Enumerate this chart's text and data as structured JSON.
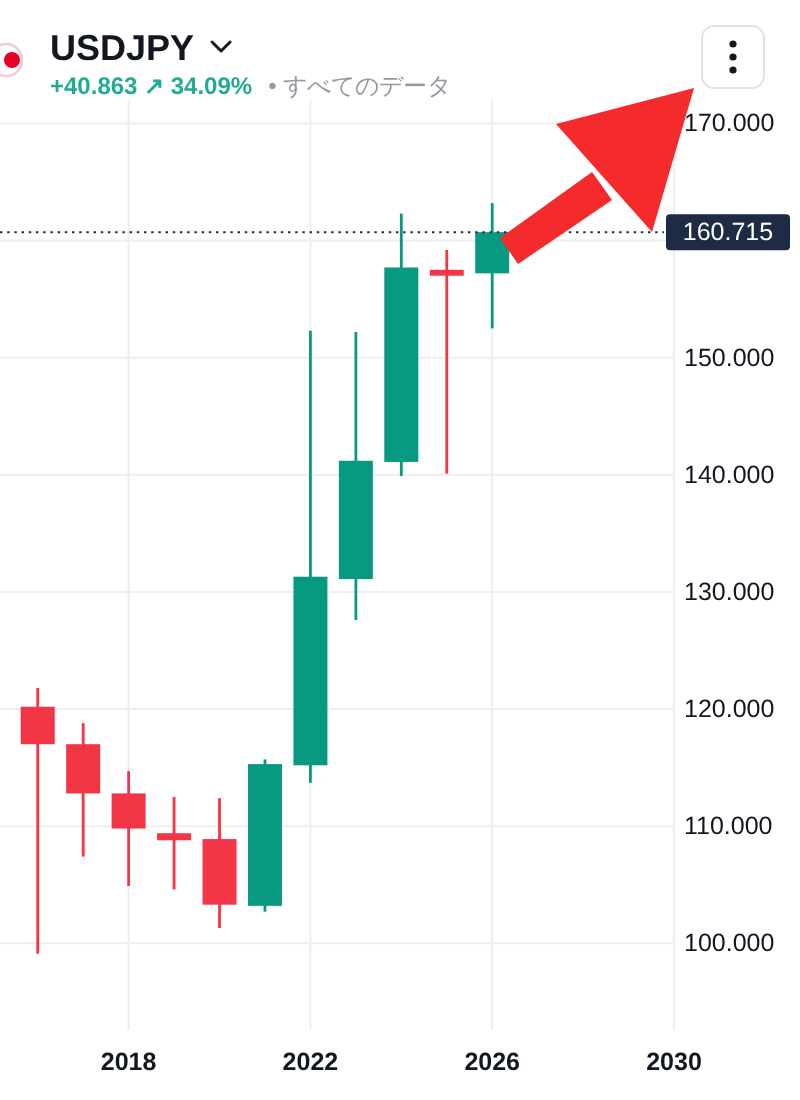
{
  "chart_data": {
    "type": "candlestick",
    "title": "USDJPY",
    "subtitle": "+40.863 ↗ 34.09%",
    "annotations": [
      "• すべてのデータ"
    ],
    "x": [
      2016,
      2017,
      2018,
      2019,
      2020,
      2021,
      2022,
      2023,
      2024,
      2025,
      2026
    ],
    "ohlc": [
      [
        120.2,
        121.8,
        99.1,
        117.0
      ],
      [
        117.0,
        118.8,
        107.4,
        112.8
      ],
      [
        112.8,
        114.7,
        104.9,
        109.8
      ],
      [
        109.4,
        112.5,
        104.6,
        108.8
      ],
      [
        108.9,
        112.4,
        101.3,
        103.3
      ],
      [
        103.2,
        115.7,
        102.7,
        115.3
      ],
      [
        115.2,
        152.3,
        113.7,
        131.3
      ],
      [
        131.1,
        152.2,
        127.6,
        141.2
      ],
      [
        141.1,
        162.3,
        139.9,
        157.7
      ],
      [
        157.5,
        159.2,
        140.1,
        157.0
      ],
      [
        157.2,
        163.2,
        152.5,
        160.715
      ]
    ],
    "colors": [
      "#f23645",
      "#f23645",
      "#f23645",
      "#f23645",
      "#f23645",
      "#089981",
      "#089981",
      "#089981",
      "#089981",
      "#f23645",
      "#089981"
    ],
    "xlim": [
      2015.17,
      2030
    ],
    "xticks": [
      2018,
      2022,
      2026,
      2030
    ],
    "ylim": [
      92.6,
      172
    ],
    "yticks": [
      {
        "value": 100,
        "label": "100.000"
      },
      {
        "value": 110,
        "label": "110.000"
      },
      {
        "value": 120,
        "label": "120.000"
      },
      {
        "value": 130,
        "label": "130.000"
      },
      {
        "value": 140,
        "label": "140.000"
      },
      {
        "value": 150,
        "label": "150.000"
      },
      {
        "value": 160,
        "label": null
      },
      {
        "value": 170,
        "label": "170.000"
      }
    ],
    "grid": true,
    "ref_lines": [
      {
        "axis": "y",
        "value": 160.715,
        "label": "160.715",
        "color": "#1e2b45",
        "line_style": "dotted"
      }
    ]
  }
}
